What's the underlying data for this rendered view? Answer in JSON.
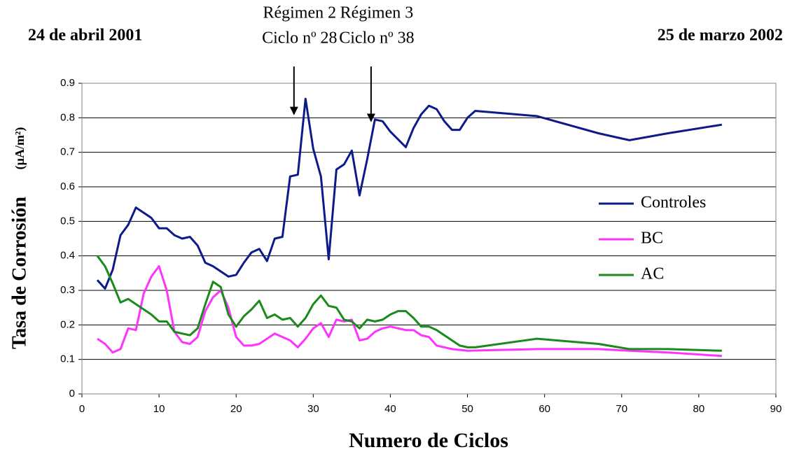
{
  "chart_data": {
    "type": "line",
    "xlabel": "Numero de Ciclos",
    "ylabel": "Tasa de Corrosión",
    "ylabel_unit": "(µA/m²)",
    "date_start": "24 de abril 2001",
    "date_end": "25 de marzo 2002",
    "annotations": [
      {
        "text": [
          "Régimen 2",
          "Ciclo nº 28"
        ],
        "x": 27.5,
        "y": 0.81
      },
      {
        "text": [
          "Régimen 3",
          "Ciclo nº 38"
        ],
        "x": 37.5,
        "y": 0.79
      }
    ],
    "xlim": [
      0,
      90
    ],
    "xticks": [
      0,
      10,
      20,
      30,
      40,
      50,
      60,
      70,
      80,
      90
    ],
    "ylim": [
      0,
      0.9
    ],
    "yticks": [
      0,
      0.1,
      0.2,
      0.3,
      0.4,
      0.5,
      0.6,
      0.7,
      0.8,
      0.9
    ],
    "grid": true,
    "legend": "right",
    "series": [
      {
        "name": "Controles",
        "color": "#0d1a8c",
        "x": [
          2,
          3,
          4,
          5,
          6,
          7,
          8,
          9,
          10,
          11,
          12,
          13,
          14,
          15,
          16,
          17,
          18,
          19,
          20,
          21,
          22,
          23,
          24,
          25,
          26,
          27,
          28,
          29,
          30,
          31,
          32,
          33,
          34,
          35,
          36,
          37,
          38,
          39,
          40,
          42,
          43,
          44,
          45,
          46,
          47,
          48,
          49,
          50,
          51,
          59,
          67,
          71,
          76,
          83
        ],
        "values": [
          0.33,
          0.305,
          0.36,
          0.46,
          0.49,
          0.54,
          0.525,
          0.51,
          0.48,
          0.48,
          0.46,
          0.45,
          0.455,
          0.43,
          0.38,
          0.37,
          0.355,
          0.34,
          0.345,
          0.38,
          0.41,
          0.42,
          0.385,
          0.45,
          0.455,
          0.63,
          0.635,
          0.855,
          0.71,
          0.63,
          0.39,
          0.65,
          0.665,
          0.705,
          0.575,
          0.68,
          0.795,
          0.79,
          0.76,
          0.715,
          0.77,
          0.81,
          0.835,
          0.825,
          0.79,
          0.765,
          0.765,
          0.8,
          0.82,
          0.805,
          0.755,
          0.735,
          0.755,
          0.78
        ]
      },
      {
        "name": "BC",
        "color": "#ff33ff",
        "x": [
          2,
          3,
          4,
          5,
          6,
          7,
          8,
          9,
          10,
          11,
          12,
          13,
          14,
          15,
          16,
          17,
          18,
          19,
          20,
          21,
          22,
          23,
          24,
          25,
          26,
          27,
          28,
          29,
          30,
          31,
          32,
          33,
          34,
          35,
          36,
          37,
          38,
          39,
          40,
          42,
          43,
          44,
          45,
          46,
          48,
          50,
          59,
          67,
          71,
          76,
          83
        ],
        "values": [
          0.16,
          0.145,
          0.12,
          0.13,
          0.19,
          0.185,
          0.29,
          0.34,
          0.37,
          0.3,
          0.18,
          0.15,
          0.145,
          0.165,
          0.24,
          0.28,
          0.3,
          0.25,
          0.165,
          0.14,
          0.14,
          0.145,
          0.16,
          0.175,
          0.165,
          0.155,
          0.135,
          0.16,
          0.19,
          0.205,
          0.165,
          0.215,
          0.21,
          0.215,
          0.155,
          0.16,
          0.18,
          0.19,
          0.195,
          0.185,
          0.185,
          0.17,
          0.165,
          0.14,
          0.13,
          0.125,
          0.13,
          0.13,
          0.125,
          0.12,
          0.11
        ]
      },
      {
        "name": "AC",
        "color": "#1a8a1a",
        "x": [
          2,
          3,
          4,
          5,
          6,
          7,
          8,
          9,
          10,
          11,
          12,
          13,
          14,
          15,
          16,
          17,
          18,
          19,
          20,
          21,
          22,
          23,
          24,
          25,
          26,
          27,
          28,
          29,
          30,
          31,
          32,
          33,
          34,
          35,
          36,
          37,
          38,
          39,
          40,
          41,
          42,
          43,
          44,
          45,
          46,
          47,
          48,
          49,
          50,
          51,
          59,
          67,
          71,
          76,
          83
        ],
        "values": [
          0.4,
          0.37,
          0.32,
          0.265,
          0.275,
          0.26,
          0.245,
          0.23,
          0.21,
          0.21,
          0.18,
          0.175,
          0.17,
          0.19,
          0.26,
          0.325,
          0.31,
          0.23,
          0.195,
          0.225,
          0.245,
          0.27,
          0.22,
          0.23,
          0.215,
          0.22,
          0.195,
          0.22,
          0.26,
          0.285,
          0.255,
          0.25,
          0.215,
          0.21,
          0.19,
          0.215,
          0.21,
          0.215,
          0.23,
          0.24,
          0.24,
          0.22,
          0.195,
          0.195,
          0.185,
          0.17,
          0.155,
          0.14,
          0.135,
          0.135,
          0.16,
          0.145,
          0.13,
          0.13,
          0.125
        ]
      }
    ]
  }
}
